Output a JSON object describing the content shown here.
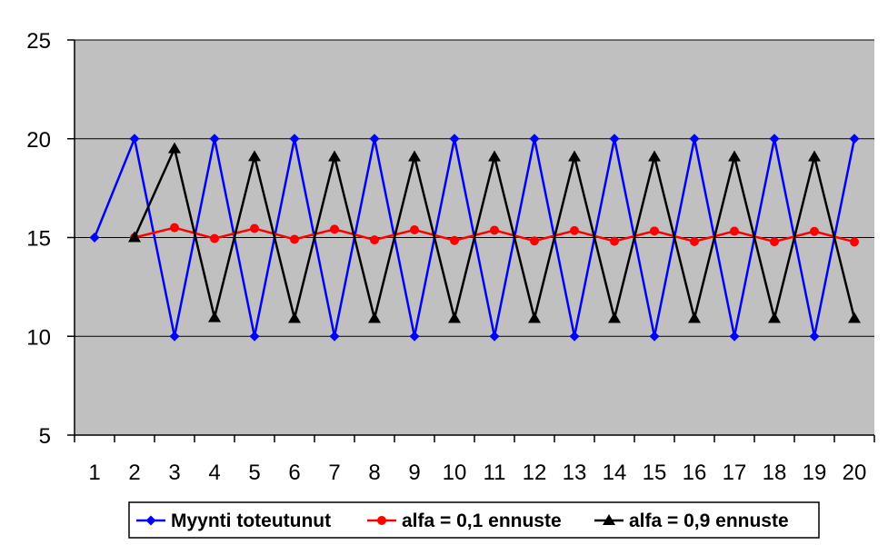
{
  "chart_data": {
    "type": "line",
    "title": "",
    "xlabel": "",
    "ylabel": "",
    "categories": [
      "1",
      "2",
      "3",
      "4",
      "5",
      "6",
      "7",
      "8",
      "9",
      "10",
      "11",
      "12",
      "13",
      "14",
      "15",
      "16",
      "17",
      "18",
      "19",
      "20"
    ],
    "ylim": [
      5,
      25
    ],
    "yticks": [
      5,
      10,
      15,
      20,
      25
    ],
    "grid": "horizontal",
    "plot_background": "#c0c0c0",
    "legend_position": "bottom",
    "series": [
      {
        "name": "Myynti toteutunut",
        "color": "#0000ff",
        "marker": "diamond",
        "values": [
          15,
          20,
          10,
          20,
          10,
          20,
          10,
          20,
          10,
          20,
          10,
          20,
          10,
          20,
          10,
          20,
          10,
          20,
          10,
          20
        ]
      },
      {
        "name": "alfa = 0,1 ennuste",
        "color": "#ff0000",
        "marker": "circle",
        "values": [
          null,
          15,
          15.5,
          14.95,
          15.46,
          14.91,
          15.42,
          14.88,
          15.39,
          14.85,
          15.37,
          14.83,
          15.35,
          14.81,
          15.33,
          14.8,
          15.32,
          14.79,
          15.31,
          14.78
        ]
      },
      {
        "name": "alfa = 0,9 ennuste",
        "color": "#000000",
        "marker": "triangle",
        "values": [
          null,
          15,
          19.5,
          10.95,
          19.1,
          10.91,
          19.09,
          10.91,
          19.09,
          10.91,
          19.09,
          10.91,
          19.09,
          10.91,
          19.09,
          10.91,
          19.09,
          10.91,
          19.09,
          10.91
        ]
      }
    ]
  }
}
